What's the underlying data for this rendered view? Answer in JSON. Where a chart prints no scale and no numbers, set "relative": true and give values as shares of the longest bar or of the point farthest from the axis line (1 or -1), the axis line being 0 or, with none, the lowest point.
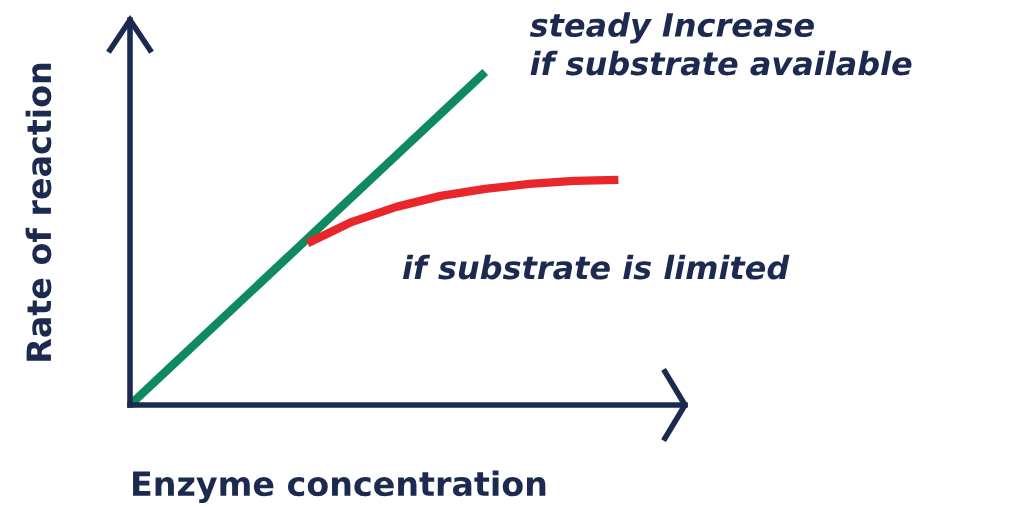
{
  "chart_data": {
    "type": "line",
    "relative": true,
    "xlabel": "Enzyme concentration",
    "ylabel": "Rate of reaction",
    "marker": "none",
    "line_style": "solid",
    "categories": [
      null,
      null,
      null,
      null,
      null,
      null,
      null,
      null,
      null,
      null,
      null,
      null
    ],
    "series": [
      {
        "name": "steady Increase\nif substrate available",
        "color": "#0f8a5f",
        "values": [
          0,
          0.125,
          0.25,
          0.375,
          0.5,
          0.625,
          0.75,
          0.875,
          1,
          null,
          null,
          null
        ]
      },
      {
        "name": "if substrate is limited",
        "color": "#e8262b",
        "values": [
          null,
          null,
          null,
          null,
          0.486,
          0.55,
          0.595,
          0.628,
          0.649,
          0.664,
          0.673,
          0.676
        ]
      }
    ]
  }
}
